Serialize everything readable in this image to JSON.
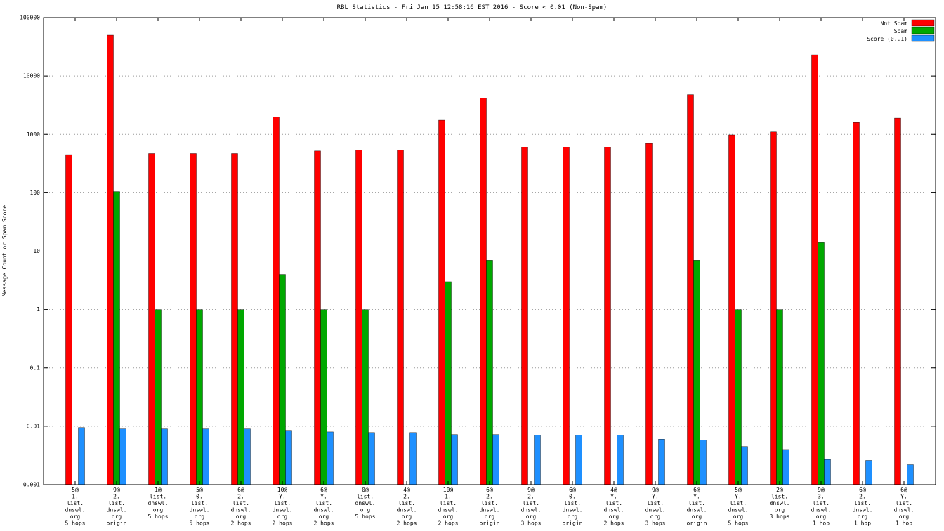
{
  "page": {
    "background": "#ffffff"
  },
  "chart_data": {
    "type": "bar",
    "title": "RBL Statistics - Fri Jan 15 12:58:16 EST 2016 - Score < 0.01 (Non-Spam)",
    "ylabel": "Message Count or Spam Score",
    "xlabel": "",
    "y_scale": "log",
    "ylim": [
      0.001,
      100000
    ],
    "grid": "horizontal-dotted",
    "legend_position": "top-right",
    "yticks": [
      {
        "value": 100000,
        "label": "100000"
      },
      {
        "value": 10000,
        "label": "10000"
      },
      {
        "value": 1000,
        "label": "1000"
      },
      {
        "value": 100,
        "label": "100"
      },
      {
        "value": 10,
        "label": "10"
      },
      {
        "value": 1,
        "label": "1"
      },
      {
        "value": 0.1,
        "label": "0.1"
      },
      {
        "value": 0.01,
        "label": "0.01"
      },
      {
        "value": 0.001,
        "label": "0.001"
      }
    ],
    "categories": [
      "5@\n1.\nlist.\ndnswl.\norg\n5 hops",
      "9@\n2.\nlist.\ndnswl.\norg\norigin",
      "1@\nlist.\ndnswl.\norg\n5 hops",
      "5@\n0.\nlist.\ndnswl.\norg\n5 hops",
      "6@\n2.\nlist.\ndnswl.\norg\n2 hops",
      "10@\nY.\nlist.\ndnswl.\norg\n2 hops",
      "6@\nY.\nlist.\ndnswl.\norg\n2 hops",
      "0@\nlist.\ndnswl.\norg\n5 hops",
      "4@\n2.\nlist.\ndnswl.\norg\n2 hops",
      "10@\n1.\nlist.\ndnswl.\norg\n2 hops",
      "6@\n2.\nlist.\ndnswl.\norg\norigin",
      "9@\n2.\nlist.\ndnswl.\norg\n3 hops",
      "6@\n0.\nlist.\ndnswl.\norg\norigin",
      "4@\nY.\nlist.\ndnswl.\norg\n2 hops",
      "9@\nY.\nlist.\ndnswl.\norg\n3 hops",
      "6@\nY.\nlist.\ndnswl.\norg\norigin",
      "5@\nY.\nlist.\ndnswl.\norg\n5 hops",
      "2@\nlist.\ndnswl.\norg\n3 hops",
      "9@\n3.\nlist.\ndnswl.\norg\n1 hop",
      "6@\n2.\nlist.\ndnswl.\norg\n1 hop",
      "6@\nY.\nlist.\ndnswl.\norg\n1 hop"
    ],
    "series": [
      {
        "name": "Not Spam",
        "color": "#ff0000",
        "values": [
          450,
          50000,
          470,
          470,
          470,
          2000,
          520,
          540,
          540,
          1750,
          4200,
          600,
          600,
          600,
          700,
          4800,
          980,
          1100,
          23000,
          1600,
          1900
        ]
      },
      {
        "name": "Spam",
        "color": "#00a800",
        "values": [
          null,
          105,
          1,
          1,
          1,
          4,
          1,
          1,
          null,
          3,
          7,
          null,
          null,
          null,
          null,
          7,
          1,
          1,
          14,
          null,
          null
        ]
      },
      {
        "name": "Score (0..1)",
        "color": "#1e90ff",
        "values": [
          0.0095,
          0.009,
          0.009,
          0.009,
          0.009,
          0.0085,
          0.008,
          0.0078,
          0.0078,
          0.0072,
          0.0072,
          0.007,
          0.007,
          0.007,
          0.006,
          0.0058,
          0.0045,
          0.004,
          0.0027,
          0.0026,
          0.0022
        ]
      }
    ]
  }
}
